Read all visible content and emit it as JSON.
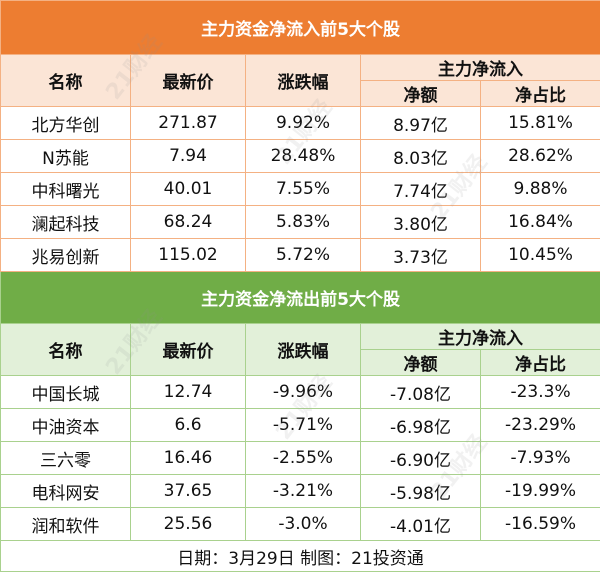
{
  "inflow": {
    "title": "主力资金净流入前5大个股",
    "headers": {
      "name": "名称",
      "price": "最新价",
      "change": "涨跌幅",
      "group": "主力净流入",
      "net": "净额",
      "ratio": "净占比"
    },
    "rows": [
      {
        "name": "北方华创",
        "price": "271.87",
        "change": "9.92%",
        "net": "8.97亿",
        "ratio": "15.81%"
      },
      {
        "name": "N苏能",
        "price": "7.94",
        "change": "28.48%",
        "net": "8.03亿",
        "ratio": "28.62%"
      },
      {
        "name": "中科曙光",
        "price": "40.01",
        "change": "7.55%",
        "net": "7.74亿",
        "ratio": "9.88%"
      },
      {
        "name": "澜起科技",
        "price": "68.24",
        "change": "5.83%",
        "net": "3.80亿",
        "ratio": "16.84%"
      },
      {
        "name": "兆易创新",
        "price": "115.02",
        "change": "5.72%",
        "net": "3.73亿",
        "ratio": "10.45%"
      }
    ]
  },
  "outflow": {
    "title": "主力资金净流出前5大个股",
    "headers": {
      "name": "名称",
      "price": "最新价",
      "change": "涨跌幅",
      "group": "主力净流入",
      "net": "净额",
      "ratio": "净占比"
    },
    "rows": [
      {
        "name": "中国长城",
        "price": "12.74",
        "change": "-9.96%",
        "net": "-7.08亿",
        "ratio": "-23.3%"
      },
      {
        "name": "中油资本",
        "price": "6.6",
        "change": "-5.71%",
        "net": "-6.98亿",
        "ratio": "-23.29%"
      },
      {
        "name": "三六零",
        "price": "16.46",
        "change": "-2.55%",
        "net": "-6.90亿",
        "ratio": "-7.93%"
      },
      {
        "name": "电科网安",
        "price": "37.65",
        "change": "-3.21%",
        "net": "-5.98亿",
        "ratio": "-19.99%"
      },
      {
        "name": "润和软件",
        "price": "25.56",
        "change": "-3.0%",
        "net": "-4.01亿",
        "ratio": "-16.59%"
      }
    ]
  },
  "footer": "日期：3月29日 制图：21投资通",
  "watermark": "21财经",
  "colors": {
    "inflow_accent": "#ed7d31",
    "outflow_accent": "#70ad47"
  }
}
